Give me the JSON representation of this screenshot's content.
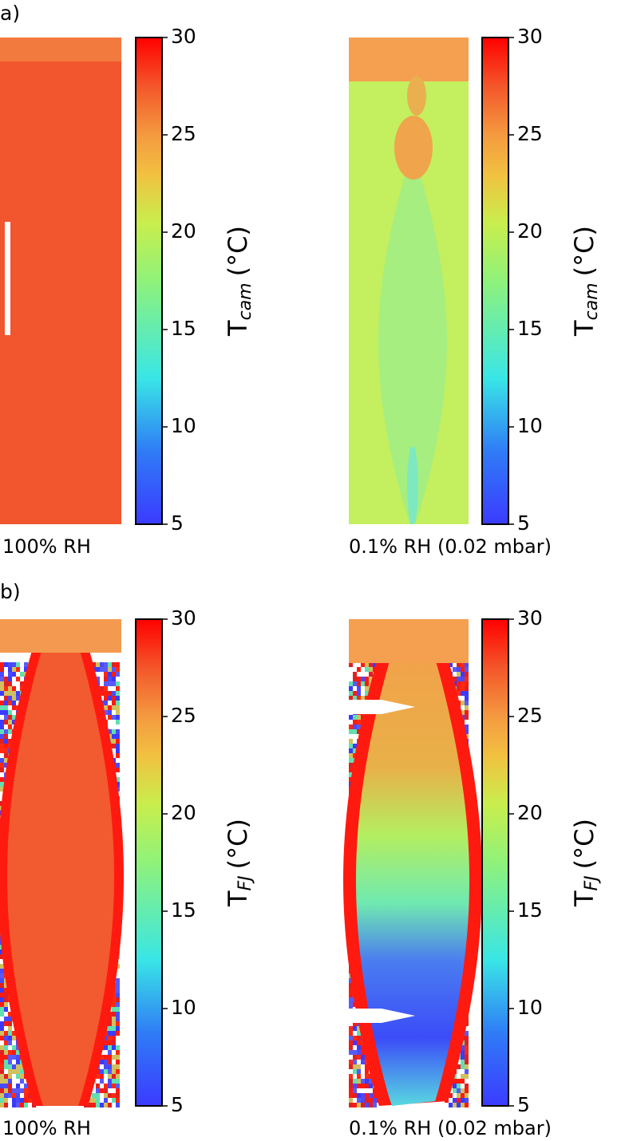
{
  "panels": [
    {
      "label": "a)",
      "captions": [
        "100% RH",
        "0.1% RH (0.02 mbar)"
      ],
      "colorbar": {
        "lim": [
          5,
          30
        ],
        "ticks": [
          5,
          10,
          15,
          20,
          25,
          30
        ],
        "label": "T",
        "subscript": "cam",
        "unit": "(°C)"
      }
    },
    {
      "label": "b)",
      "captions": [
        "100% RH",
        "0.1% RH (0.02 mbar)"
      ],
      "colorbar": {
        "lim": [
          5,
          30
        ],
        "ticks": [
          5,
          10,
          15,
          20,
          25,
          30
        ],
        "label": "T",
        "subscript": "FJ",
        "unit": "(°C)"
      }
    }
  ]
}
